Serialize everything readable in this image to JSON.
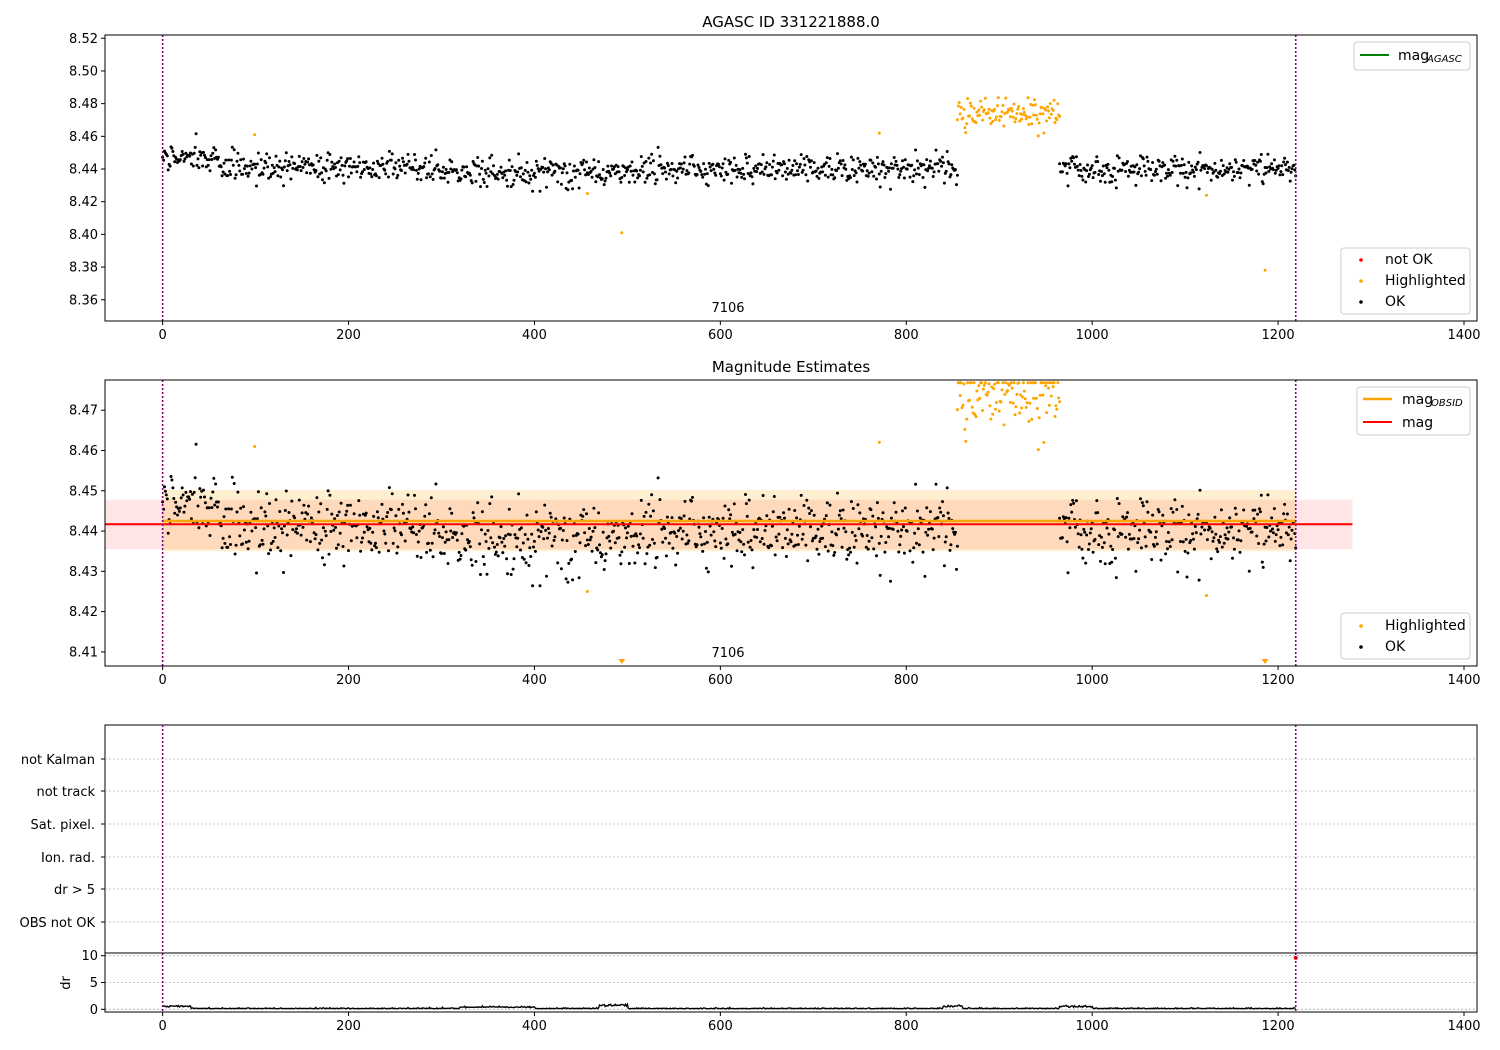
{
  "chart_data": [
    {
      "id": "p1",
      "type": "scatter",
      "title": "AGASC ID 331221888.0",
      "x_range": [
        -62,
        1414
      ],
      "y_range": [
        8.347,
        8.522
      ],
      "x_ticks": [
        0,
        200,
        400,
        600,
        800,
        1000,
        1200,
        1400
      ],
      "y_ticks": [
        8.36,
        8.38,
        8.4,
        8.42,
        8.44,
        8.46,
        8.48,
        8.5,
        8.52
      ],
      "y_tick_decimals": 2,
      "obsid_label": "7106",
      "obsid_boundaries": [
        0,
        1219
      ],
      "series": [
        {
          "name": "OK",
          "color": "#000000",
          "x_range": [
            0,
            1219
          ],
          "gaps": [
            [
              855,
              965
            ]
          ],
          "base": 8.441,
          "noise": 0.0055,
          "segments": [
            [
              0,
              60,
              8.447
            ],
            [
              60,
              300,
              8.441
            ],
            [
              300,
              500,
              8.438
            ],
            [
              500,
              855,
              8.44
            ],
            [
              965,
              1219,
              8.44
            ]
          ]
        },
        {
          "name": "Highlighted",
          "color": "#ffa500",
          "x_range": [
            855,
            965
          ],
          "base": 8.474,
          "noise": 0.006,
          "outliers": [
            [
              99,
              8.461
            ],
            [
              457,
              8.425
            ],
            [
              494,
              8.401
            ],
            [
              771,
              8.462
            ],
            [
              1123,
              8.424
            ],
            [
              1186,
              8.378
            ]
          ]
        }
      ],
      "legend_upper": {
        "label": "mag",
        "sub": "AGASC",
        "color": "#008000"
      },
      "legend_lower": [
        {
          "label": "not OK",
          "color": "#ff0000"
        },
        {
          "label": "Highlighted",
          "color": "#ffa500"
        },
        {
          "label": "OK",
          "color": "#000000"
        }
      ]
    },
    {
      "id": "p2",
      "type": "scatter",
      "title": "Magnitude Estimates",
      "x_range": [
        -62,
        1414
      ],
      "y_range": [
        8.4065,
        8.4775
      ],
      "x_ticks": [
        0,
        200,
        400,
        600,
        800,
        1000,
        1200,
        1400
      ],
      "y_ticks": [
        8.41,
        8.42,
        8.43,
        8.44,
        8.45,
        8.46,
        8.47
      ],
      "y_tick_decimals": 2,
      "obsid_label": "7106",
      "obsid_boundaries": [
        0,
        1219
      ],
      "mag_obsid": {
        "value": 8.4425,
        "band": [
          8.435,
          8.4502
        ],
        "x_range": [
          0,
          1219
        ],
        "color": "#ffa500"
      },
      "mag": {
        "value": 8.4417,
        "band": [
          8.4355,
          8.4478
        ],
        "x_range": [
          -62,
          1280
        ],
        "color": "#ff0000"
      },
      "series": [
        {
          "name": "OK",
          "color": "#000000",
          "gaps": [
            [
              855,
              965
            ]
          ],
          "noise": 0.0055
        },
        {
          "name": "Highlighted",
          "color": "#ffa500",
          "x_range": [
            855,
            965
          ],
          "base": 8.474,
          "noise": 0.006
        }
      ],
      "clipped_markers": [
        494,
        1186
      ],
      "legend_upper": [
        {
          "label": "mag",
          "sub": "OBSID",
          "color": "#ffa500"
        },
        {
          "label": "mag",
          "sub": "",
          "color": "#ff0000"
        }
      ],
      "legend_lower": [
        {
          "label": "Highlighted",
          "color": "#ffa500"
        },
        {
          "label": "OK",
          "color": "#000000"
        }
      ]
    },
    {
      "id": "p3",
      "type": "flags",
      "categories": [
        "not Kalman",
        "not track",
        "Sat. pixel.",
        "Ion. rad.",
        "dr > 5",
        "OBS not OK"
      ],
      "x_range": [
        -62,
        1414
      ],
      "obsid_boundaries": [
        0,
        1219
      ]
    },
    {
      "id": "p4",
      "type": "line",
      "ylabel": "dr",
      "x_range": [
        -62,
        1414
      ],
      "y_range": [
        -0.5,
        10.5
      ],
      "x_ticks": [
        0,
        200,
        400,
        600,
        800,
        1000,
        1200,
        1400
      ],
      "y_ticks": [
        0,
        5,
        10
      ],
      "y_tick_decimals": 0,
      "obsid_boundaries": [
        0,
        1219
      ],
      "bumps": [
        [
          0,
          30,
          0.5
        ],
        [
          320,
          400,
          0.3
        ],
        [
          470,
          500,
          0.7
        ],
        [
          840,
          860,
          0.5
        ],
        [
          965,
          1000,
          0.4
        ]
      ]
    }
  ]
}
